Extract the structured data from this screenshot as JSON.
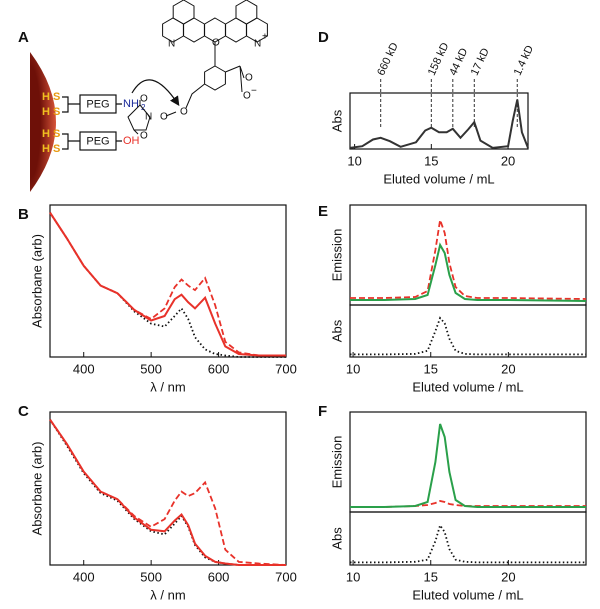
{
  "diagram": {
    "label": "A",
    "thiol_labels": [
      "H",
      "S",
      "H",
      "S",
      "H",
      "S",
      "H",
      "S"
    ],
    "peg_labels": [
      "PEG",
      "PEG"
    ],
    "amine": [
      "NH",
      "2"
    ],
    "hydroxyl": "OH",
    "atoms": [
      "N",
      "N",
      "+",
      "O",
      "O",
      "O",
      "−",
      "O",
      "N",
      "O",
      "O",
      "O"
    ]
  },
  "chart_data": [
    {
      "type": "line",
      "panel": "B",
      "xlabel": "λ / nm",
      "ylabel": "Absorbane (arb)",
      "x": [
        350,
        375,
        400,
        425,
        450,
        475,
        500,
        520,
        535,
        545,
        555,
        565,
        580,
        595,
        610,
        630,
        660,
        700
      ],
      "xlim": [
        350,
        700
      ],
      "xticks": [
        400,
        500,
        600,
        700
      ],
      "ylim": [
        0,
        1
      ],
      "series": [
        {
          "color": "#111111",
          "dash": "dotted",
          "values": [
            0.95,
            0.78,
            0.6,
            0.47,
            0.42,
            0.3,
            0.22,
            0.2,
            0.27,
            0.32,
            0.25,
            0.13,
            0.05,
            0.02,
            0.01,
            0,
            0,
            0
          ]
        },
        {
          "color": "#e8322a",
          "dash": "solid",
          "values": [
            0.95,
            0.78,
            0.6,
            0.47,
            0.42,
            0.31,
            0.24,
            0.27,
            0.38,
            0.41,
            0.36,
            0.32,
            0.39,
            0.22,
            0.07,
            0.02,
            0.01,
            0.01
          ]
        },
        {
          "color": "#e8322a",
          "dash": "dashed",
          "values": [
            0.95,
            0.78,
            0.6,
            0.47,
            0.42,
            0.31,
            0.25,
            0.32,
            0.46,
            0.51,
            0.47,
            0.44,
            0.52,
            0.34,
            0.1,
            0.03,
            0.01,
            0.01
          ]
        }
      ]
    },
    {
      "type": "line",
      "panel": "C",
      "xlabel": "λ / nm",
      "ylabel": "Absorbane (arb)",
      "x": [
        350,
        375,
        400,
        425,
        450,
        475,
        500,
        520,
        535,
        545,
        555,
        565,
        580,
        595,
        610,
        630,
        660,
        700
      ],
      "xlim": [
        350,
        700
      ],
      "xticks": [
        400,
        500,
        600,
        700
      ],
      "ylim": [
        0,
        1
      ],
      "series": [
        {
          "color": "#111111",
          "dash": "dotted",
          "values": [
            0.95,
            0.78,
            0.6,
            0.47,
            0.42,
            0.3,
            0.22,
            0.2,
            0.27,
            0.32,
            0.25,
            0.13,
            0.05,
            0.02,
            0.01,
            0,
            0,
            0
          ]
        },
        {
          "color": "#e8322a",
          "dash": "solid",
          "values": [
            0.95,
            0.79,
            0.61,
            0.48,
            0.43,
            0.31,
            0.23,
            0.22,
            0.29,
            0.33,
            0.26,
            0.14,
            0.06,
            0.02,
            0.01,
            0,
            0,
            0
          ]
        },
        {
          "color": "#e8322a",
          "dash": "dashed",
          "values": [
            0.95,
            0.79,
            0.61,
            0.48,
            0.43,
            0.32,
            0.25,
            0.3,
            0.42,
            0.48,
            0.45,
            0.47,
            0.54,
            0.37,
            0.1,
            0.02,
            0.01,
            0
          ]
        }
      ]
    },
    {
      "type": "line",
      "panel": "D",
      "xlabel": "Eluted volume / mL",
      "ylabel": "Abs",
      "x": [
        9.7,
        10.5,
        11.2,
        11.7,
        12.3,
        13,
        14,
        14.6,
        15,
        15.5,
        16,
        16.4,
        16.9,
        17.4,
        17.8,
        18.2,
        19,
        20,
        20.3,
        20.6,
        20.9,
        21.3
      ],
      "xlim": [
        9.7,
        21.3
      ],
      "xticks": [
        10,
        15,
        20
      ],
      "ylim": [
        0,
        1
      ],
      "annotations": [
        {
          "text": "660 kD",
          "x": 11.7
        },
        {
          "text": "158 kD",
          "x": 15
        },
        {
          "text": "44 kD",
          "x": 16.4
        },
        {
          "text": "17 kD",
          "x": 17.8
        },
        {
          "text": "1.4 kD",
          "x": 20.6
        }
      ],
      "series": [
        {
          "color": "#333333",
          "dash": "solid",
          "values": [
            0.02,
            0.05,
            0.17,
            0.2,
            0.14,
            0.04,
            0.12,
            0.33,
            0.38,
            0.3,
            0.3,
            0.36,
            0.2,
            0.35,
            0.48,
            0.15,
            0.02,
            0.05,
            0.5,
            0.88,
            0.3,
            0.02
          ]
        }
      ]
    },
    {
      "type": "line",
      "panel": "E",
      "ylabel": "Emission",
      "x": [
        9.8,
        12,
        14,
        14.8,
        15.3,
        15.6,
        15.9,
        16.2,
        16.6,
        17.2,
        18,
        20,
        25
      ],
      "xlim": [
        9.8,
        25
      ],
      "ylim": [
        0,
        1
      ],
      "series": [
        {
          "color": "#e8322a",
          "dash": "dashed",
          "values": [
            0.07,
            0.07,
            0.08,
            0.14,
            0.55,
            0.85,
            0.72,
            0.42,
            0.18,
            0.09,
            0.07,
            0.07,
            0.06
          ]
        },
        {
          "color": "#2aa04a",
          "dash": "solid",
          "values": [
            0.05,
            0.05,
            0.06,
            0.1,
            0.4,
            0.6,
            0.52,
            0.3,
            0.12,
            0.06,
            0.05,
            0.05,
            0.04
          ]
        }
      ]
    },
    {
      "type": "line",
      "xlabel": "Eluted volume / mL",
      "ylabel": "Abs",
      "x": [
        9.8,
        12,
        14,
        14.8,
        15.3,
        15.6,
        15.9,
        16.2,
        16.6,
        17.2,
        18,
        20,
        25
      ],
      "xlim": [
        9.8,
        25
      ],
      "xticks": [
        10,
        15,
        20
      ],
      "ylim": [
        0,
        1
      ],
      "series": [
        {
          "color": "#111111",
          "dash": "dotted",
          "values": [
            0.05,
            0.05,
            0.06,
            0.12,
            0.5,
            0.75,
            0.65,
            0.35,
            0.12,
            0.06,
            0.05,
            0.05,
            0.05
          ]
        }
      ]
    },
    {
      "type": "line",
      "panel": "F",
      "ylabel": "Emission",
      "x": [
        9.8,
        12,
        14,
        14.8,
        15.3,
        15.6,
        15.9,
        16.2,
        16.6,
        17.2,
        18,
        20,
        25
      ],
      "xlim": [
        9.8,
        25
      ],
      "ylim": [
        0,
        1
      ],
      "series": [
        {
          "color": "#e8322a",
          "dash": "dashed",
          "values": [
            0.05,
            0.05,
            0.06,
            0.07,
            0.09,
            0.11,
            0.1,
            0.08,
            0.07,
            0.06,
            0.06,
            0.06,
            0.06
          ]
        },
        {
          "color": "#2aa04a",
          "dash": "solid",
          "values": [
            0.05,
            0.05,
            0.06,
            0.1,
            0.5,
            0.88,
            0.75,
            0.4,
            0.12,
            0.06,
            0.05,
            0.05,
            0.05
          ]
        }
      ]
    },
    {
      "type": "line",
      "xlabel": "Eluted volume / mL",
      "ylabel": "Abs",
      "x": [
        9.8,
        12,
        14,
        14.8,
        15.3,
        15.6,
        15.9,
        16.2,
        16.6,
        17.2,
        18,
        20,
        25
      ],
      "xlim": [
        9.8,
        25
      ],
      "xticks": [
        10,
        15,
        20
      ],
      "ylim": [
        0,
        1
      ],
      "series": [
        {
          "color": "#111111",
          "dash": "dotted",
          "values": [
            0.05,
            0.05,
            0.06,
            0.1,
            0.45,
            0.75,
            0.62,
            0.3,
            0.1,
            0.06,
            0.05,
            0.05,
            0.05
          ]
        }
      ]
    }
  ]
}
